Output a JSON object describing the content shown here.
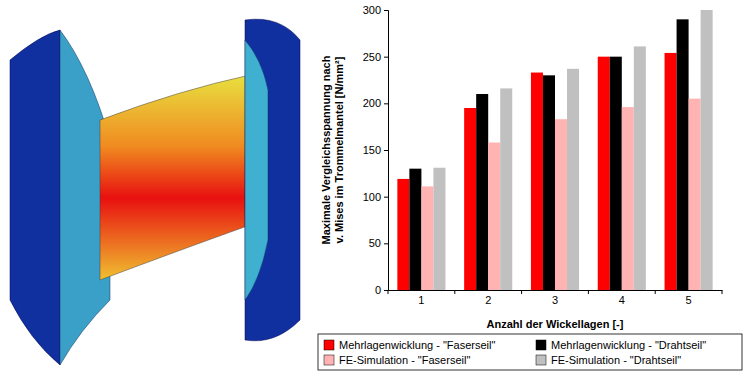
{
  "chart_data": {
    "type": "bar",
    "ylabel": [
      "Maximale Vergleichsspannung nach",
      "v. Mises im Trommelmantel [N/mm²]"
    ],
    "xlabel": "Anzahl der Wickellagen [-]",
    "categories": [
      "1",
      "2",
      "3",
      "4",
      "5"
    ],
    "series": [
      {
        "name": "Mehrlagenwicklung - \"Faserseil\"",
        "color": "#ff0000",
        "values": [
          119,
          195,
          233,
          250,
          254
        ]
      },
      {
        "name": "Mehrlagenwicklung - \"Drahtseil\"",
        "color": "#000000",
        "values": [
          130,
          210,
          230,
          250,
          290
        ]
      },
      {
        "name": "FE-Simulation - \"Faserseil\"",
        "color": "#ffb3b3",
        "values": [
          111,
          158,
          183,
          196,
          205
        ]
      },
      {
        "name": "FE-Simulation - \"Drahtseil\"",
        "color": "#c0c0c0",
        "values": [
          131,
          216,
          237,
          261,
          300
        ]
      }
    ],
    "ylim": [
      0,
      300
    ],
    "yticks": [
      0,
      50,
      100,
      150,
      200,
      250,
      300
    ],
    "grid": false,
    "legend": "bottom"
  }
}
